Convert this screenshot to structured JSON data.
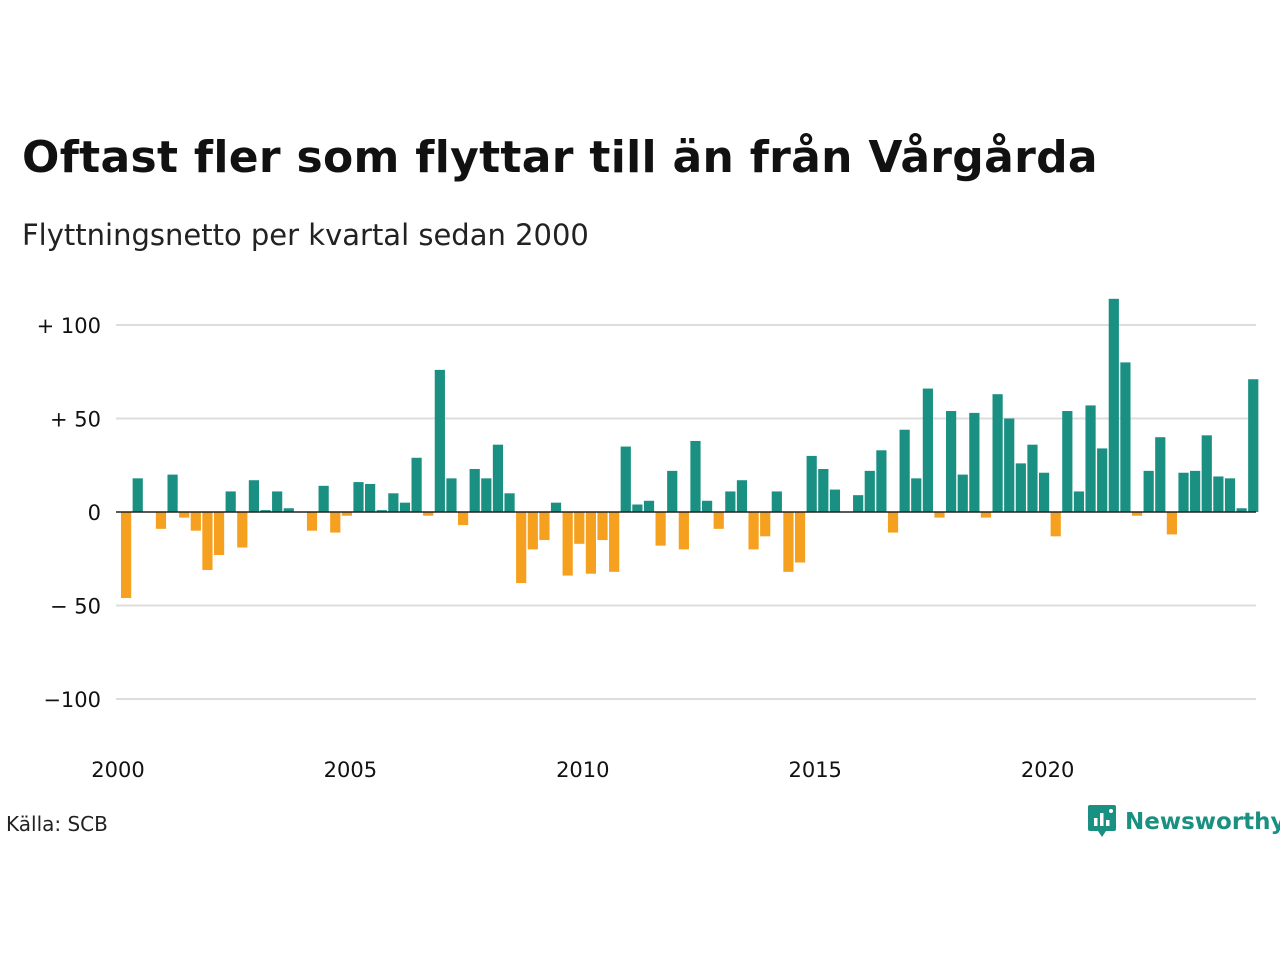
{
  "title": "Oftast fler som flyttar till än från Vårgårda",
  "subtitle": "Flyttningsnetto per kvartal sedan 2000",
  "source": "Källa: SCB",
  "brand": "Newsworthy",
  "colors": {
    "positive": "#1a9082",
    "negative": "#f5a01e",
    "grid": "#dddddd",
    "zero_line": "#222222"
  },
  "chart_data": {
    "type": "bar",
    "title": "Oftast fler som flyttar till än från Vårgårda",
    "subtitle": "Flyttningsnetto per kvartal sedan 2000",
    "xlabel": "",
    "ylabel": "",
    "ylim": [
      -115,
      120
    ],
    "y_ticks": [
      {
        "value": 100,
        "label": "+ 100"
      },
      {
        "value": 50,
        "label": "+  50"
      },
      {
        "value": 0,
        "label": "0"
      },
      {
        "value": -50,
        "label": "− 50"
      },
      {
        "value": -100,
        "label": "−100"
      }
    ],
    "x_ticks": [
      "2000",
      "2005",
      "2010",
      "2015",
      "2020"
    ],
    "grid": true,
    "legend": "none",
    "start": "2000 Q1",
    "frequency": "quarter",
    "values": [
      -46,
      18,
      0,
      -9,
      20,
      -3,
      -10,
      -31,
      -23,
      11,
      -19,
      17,
      1,
      11,
      2,
      0,
      -10,
      14,
      -11,
      -2,
      16,
      15,
      1,
      10,
      5,
      29,
      -2,
      76,
      18,
      -7,
      23,
      18,
      36,
      10,
      -38,
      -20,
      -15,
      5,
      -34,
      -17,
      -33,
      -15,
      -32,
      35,
      4,
      6,
      -18,
      22,
      -20,
      38,
      6,
      -9,
      11,
      17,
      -20,
      -13,
      11,
      -32,
      -27,
      30,
      23,
      12,
      0,
      9,
      22,
      33,
      -11,
      44,
      18,
      66,
      -3,
      54,
      20,
      53,
      -3,
      63,
      50,
      26,
      36,
      21,
      -13,
      54,
      11,
      57,
      34,
      114,
      80,
      -2,
      22,
      40,
      -12,
      21,
      22,
      41,
      19,
      18,
      2,
      71
    ]
  }
}
